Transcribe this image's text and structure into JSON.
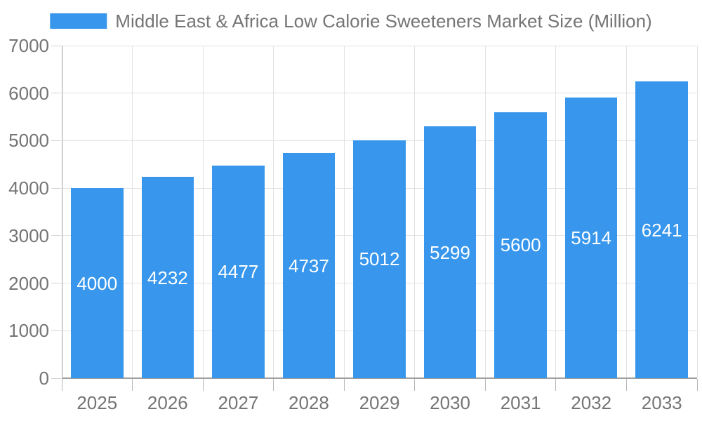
{
  "chart_data": {
    "type": "bar",
    "title": "Middle East & Africa Low Calorie Sweeteners Market Size (Million)",
    "categories": [
      "2025",
      "2026",
      "2027",
      "2028",
      "2029",
      "2030",
      "2031",
      "2032",
      "2033"
    ],
    "series": [
      {
        "name": "Middle East & Africa Low Calorie Sweeteners Market Size (Million)",
        "color": "#3897EC",
        "values": [
          4000,
          4232,
          4477,
          4737,
          5012,
          5299,
          5600,
          5914,
          6241
        ]
      }
    ],
    "bar_value_labels": [
      "4000",
      "4232",
      "4477",
      "4737",
      "5012",
      "5299",
      "5600",
      "5914",
      "6241"
    ],
    "xlabel": "",
    "ylabel": "",
    "ylim": [
      0,
      7000
    ],
    "yticks": [
      0,
      1000,
      2000,
      3000,
      4000,
      5000,
      6000,
      7000
    ],
    "grid": true,
    "legend_position": "top",
    "value_label_position": "inside-center",
    "value_label_color": "#FFFFFF"
  },
  "colors": {
    "bar": "#3897EC",
    "text": "#757575",
    "axis_line": "#9E9E9E",
    "gridline": "#E2E2E2",
    "y_tick": "#D4D4D4",
    "x_tick": "#B8B8B8",
    "background": "#FFFFFF"
  }
}
